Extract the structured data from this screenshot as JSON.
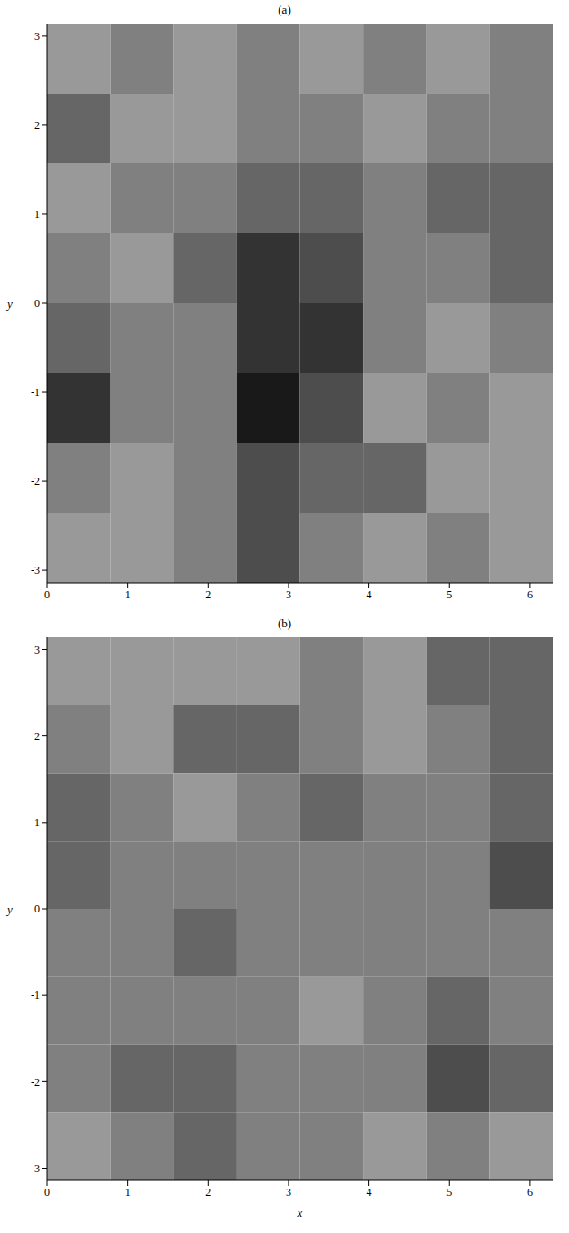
{
  "chart_data": [
    {
      "type": "heatmap",
      "title": "(a)",
      "y_label": "y",
      "xlim": [
        0,
        6.2832
      ],
      "ylim": [
        -3.1416,
        3.1416
      ],
      "xticks": [
        0,
        1,
        2,
        3,
        4,
        5,
        6
      ],
      "yticks": [
        -3,
        -2,
        -1,
        0,
        1,
        2,
        3
      ],
      "cells": [
        [
          0.4,
          0.5,
          0.4,
          0.5,
          0.4,
          0.5,
          0.4,
          0.5
        ],
        [
          0.6,
          0.4,
          0.4,
          0.5,
          0.5,
          0.4,
          0.5,
          0.5
        ],
        [
          0.4,
          0.5,
          0.5,
          0.6,
          0.6,
          0.5,
          0.6,
          0.6
        ],
        [
          0.5,
          0.4,
          0.6,
          0.8,
          0.7,
          0.5,
          0.5,
          0.6
        ],
        [
          0.6,
          0.5,
          0.5,
          0.8,
          0.8,
          0.5,
          0.4,
          0.5
        ],
        [
          0.8,
          0.5,
          0.5,
          0.9,
          0.7,
          0.4,
          0.5,
          0.4
        ],
        [
          0.5,
          0.4,
          0.5,
          0.7,
          0.6,
          0.6,
          0.4,
          0.4
        ],
        [
          0.4,
          0.4,
          0.5,
          0.7,
          0.5,
          0.4,
          0.5,
          0.4
        ]
      ]
    },
    {
      "type": "heatmap",
      "title": "(b)",
      "x_label": "x",
      "y_label": "y",
      "xlim": [
        0,
        6.2832
      ],
      "ylim": [
        -3.1416,
        3.1416
      ],
      "xticks": [
        0,
        1,
        2,
        3,
        4,
        5,
        6
      ],
      "yticks": [
        -3,
        -2,
        -1,
        0,
        1,
        2,
        3
      ],
      "cells": [
        [
          0.4,
          0.4,
          0.4,
          0.4,
          0.5,
          0.4,
          0.6,
          0.6
        ],
        [
          0.5,
          0.4,
          0.6,
          0.6,
          0.5,
          0.4,
          0.5,
          0.6
        ],
        [
          0.6,
          0.5,
          0.4,
          0.5,
          0.6,
          0.5,
          0.5,
          0.6
        ],
        [
          0.6,
          0.5,
          0.5,
          0.5,
          0.5,
          0.5,
          0.5,
          0.7
        ],
        [
          0.5,
          0.5,
          0.6,
          0.5,
          0.5,
          0.5,
          0.5,
          0.5
        ],
        [
          0.5,
          0.5,
          0.5,
          0.5,
          0.4,
          0.5,
          0.6,
          0.5
        ],
        [
          0.5,
          0.6,
          0.6,
          0.5,
          0.5,
          0.5,
          0.7,
          0.6
        ],
        [
          0.4,
          0.5,
          0.6,
          0.5,
          0.5,
          0.4,
          0.5,
          0.4
        ]
      ]
    }
  ]
}
